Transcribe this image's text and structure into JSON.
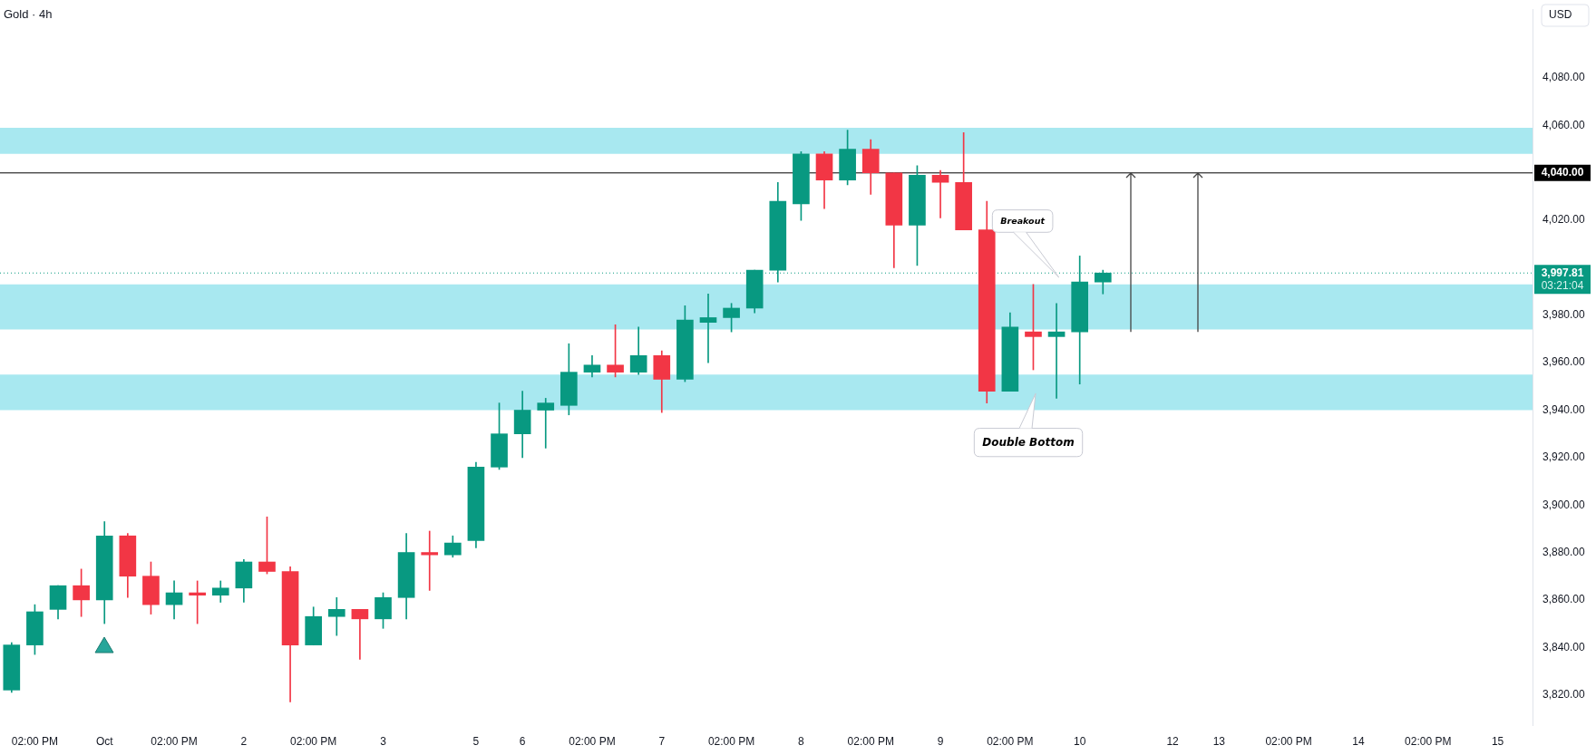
{
  "chart_data": {
    "type": "candlestick",
    "title": "Gold · 4h",
    "categories": [
      null,
      "02:00 PM",
      null,
      null,
      "Oct",
      null,
      null,
      "02:00 PM",
      null,
      null,
      "2",
      null,
      null,
      "02:00 PM",
      null,
      null,
      "3",
      null,
      null,
      null,
      "5",
      null,
      "6",
      null,
      null,
      "02:00 PM",
      null,
      null,
      "7",
      null,
      null,
      "02:00 PM",
      null,
      null,
      "8",
      null,
      null,
      "02:00 PM",
      null,
      null,
      "9",
      null,
      null,
      "02:00 PM",
      null,
      null,
      "10",
      null,
      null,
      null,
      "12",
      null,
      "13",
      null,
      null,
      "02:00 PM",
      null,
      null,
      "14",
      null,
      null,
      "02:00 PM",
      null,
      null,
      "15",
      null
    ],
    "ohlc": [
      [
        3822,
        3842,
        3821,
        3841
      ],
      [
        3841,
        3858,
        3837,
        3855
      ],
      [
        3856,
        3866,
        3852,
        3866
      ],
      [
        3866,
        3873,
        3853,
        3860
      ],
      [
        3860,
        3893,
        3850,
        3887
      ],
      [
        3887,
        3888,
        3861,
        3870
      ],
      [
        3870,
        3876,
        3854,
        3858
      ],
      [
        3858,
        3868,
        3852,
        3863
      ],
      [
        3863,
        3868,
        3850,
        3862
      ],
      [
        3862,
        3868,
        3859,
        3865
      ],
      [
        3865,
        3877,
        3859,
        3876
      ],
      [
        3876,
        3895,
        3871,
        3872
      ],
      [
        3872,
        3874,
        3817,
        3841
      ],
      [
        3841,
        3857,
        3841,
        3853
      ],
      [
        3853,
        3861,
        3845,
        3856
      ],
      [
        3856,
        3856,
        3835,
        3852
      ],
      [
        3852,
        3863,
        3848,
        3861
      ],
      [
        3861,
        3888,
        3852,
        3880
      ],
      [
        3880,
        3889,
        3864,
        3879
      ],
      [
        3879,
        3887,
        3878,
        3884
      ],
      [
        3885,
        3918,
        3882,
        3916
      ],
      [
        3916,
        3943,
        3915,
        3930
      ],
      [
        3930,
        3948,
        3920,
        3940
      ],
      [
        3940,
        3945,
        3924,
        3943
      ],
      [
        3942,
        3968,
        3938,
        3956
      ],
      [
        3956,
        3963,
        3954,
        3959
      ],
      [
        3959,
        3976,
        3954,
        3956
      ],
      [
        3956,
        3975,
        3955,
        3963
      ],
      [
        3963,
        3965,
        3939,
        3953
      ],
      [
        3953,
        3984,
        3952,
        3978
      ],
      [
        3977,
        3989,
        3960,
        3979
      ],
      [
        3979,
        3985,
        3973,
        3983
      ],
      [
        3983,
        3999,
        3981,
        3999
      ],
      [
        3999,
        4036,
        3994,
        4028
      ],
      [
        4027,
        4049,
        4020,
        4048
      ],
      [
        4048,
        4049,
        4025,
        4037
      ],
      [
        4037,
        4058,
        4035,
        4050
      ],
      [
        4050,
        4054,
        4031,
        4040
      ],
      [
        4040,
        4040,
        4000,
        4018
      ],
      [
        4018,
        4043,
        4001,
        4039
      ],
      [
        4039,
        4041,
        4021,
        4036
      ],
      [
        4036,
        4057,
        4016,
        4016
      ],
      [
        4016,
        4028,
        3943,
        3948
      ],
      [
        3948,
        3981,
        3948,
        3975
      ],
      [
        3973,
        3993,
        3957,
        3971
      ],
      [
        3971,
        3985,
        3945,
        3973
      ],
      [
        3973,
        4005,
        3951,
        3994
      ],
      [
        3994,
        3999,
        3989,
        3997.81
      ],
      null,
      null,
      null,
      null,
      null,
      null,
      null,
      null,
      null,
      null,
      null,
      null,
      null,
      null,
      null,
      null,
      null,
      null
    ],
    "colors": [
      "#089981",
      "#089981",
      "#089981",
      "#f23645",
      "#089981",
      "#f23645",
      "#f23645",
      "#089981",
      "#f23645",
      "#089981",
      "#089981",
      "#f23645",
      "#f23645",
      "#089981",
      "#089981",
      "#f23645",
      "#089981",
      "#089981",
      "#f23645",
      "#089981",
      "#089981",
      "#089981",
      "#089981",
      "#089981",
      "#089981",
      "#089981",
      "#f23645",
      "#089981",
      "#f23645",
      "#089981",
      "#089981",
      "#089981",
      "#089981",
      "#089981",
      "#089981",
      "#f23645",
      "#089981",
      "#f23645",
      "#f23645",
      "#089981",
      "#f23645",
      "#f23645",
      "#f23645",
      "#089981",
      "#f23645",
      "#089981",
      "#089981",
      "#089981",
      null,
      null,
      null,
      null,
      null,
      null,
      null,
      null,
      null,
      null,
      null,
      null,
      null,
      null,
      null,
      null,
      null,
      null
    ],
    "ylim": [
      3807,
      4109
    ],
    "yticks": [
      {
        "value": 3820,
        "label": "3,820.00"
      },
      {
        "value": 3840,
        "label": "3,840.00"
      },
      {
        "value": 3860,
        "label": "3,860.00"
      },
      {
        "value": 3880,
        "label": "3,880.00"
      },
      {
        "value": 3900,
        "label": "3,900.00"
      },
      {
        "value": 3920,
        "label": "3,920.00"
      },
      {
        "value": 3940,
        "label": "3,940.00"
      },
      {
        "value": 3960,
        "label": "3,960.00"
      },
      {
        "value": 3980,
        "label": "3,980.00"
      },
      {
        "value": 4020,
        "label": "4,020.00"
      },
      {
        "value": 4040,
        "label": "4,040.00"
      },
      {
        "value": 4060,
        "label": "4,060.00"
      },
      {
        "value": 4080,
        "label": "4,080.00"
      }
    ],
    "bands": [
      {
        "axis": "y",
        "from": 4048,
        "to": 4059,
        "color": "#a8e8f0"
      },
      {
        "axis": "y",
        "from": 3974,
        "to": 3993,
        "color": "#a8e8f0"
      },
      {
        "axis": "y",
        "from": 3940,
        "to": 3955,
        "color": "#a8e8f0"
      }
    ],
    "ref_lines": [
      {
        "axis": "y",
        "value": 4040,
        "label": "4,040.00",
        "color": "#000000"
      },
      {
        "axis": "y",
        "value": 3997.81,
        "label": "3,997.81",
        "color": "#089981",
        "line_style": "dotted"
      }
    ],
    "annotations": [
      "Breakout",
      "Double Bottom",
      "03:21:04",
      "USD"
    ]
  }
}
